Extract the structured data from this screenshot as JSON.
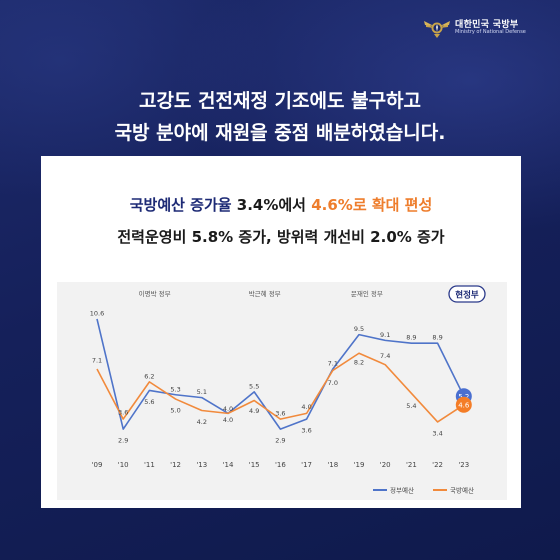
{
  "brand": {
    "name_ko": "대한민국 국방부",
    "name_en": "Ministry of National Defense",
    "logo_icon": "mnd-emblem-icon"
  },
  "headline": {
    "line1": "고강도 건전재정 기조에도 불구하고",
    "line2": "국방 분야에 재원을 중점 배분하였습니다."
  },
  "summary": {
    "line1_a": "국방예산 증가율",
    "line1_b": "3.4%에서",
    "line1_c": "4.6%로 확대 편성",
    "line2": "전력운영비 5.8% 증가, 방위력 개선비 2.0% 증가"
  },
  "colors": {
    "government": "#4f74c9",
    "defense": "#f18a3c",
    "government_marker": "#4a6fd0",
    "defense_marker": "#f47d27",
    "navy": "#1d2a75",
    "badge_border": "#2b3a8a"
  },
  "chart_data": {
    "type": "line",
    "title": "",
    "x": [
      "'09",
      "'10",
      "'11",
      "'12",
      "'13",
      "'14",
      "'15",
      "'16",
      "'17",
      "'18",
      "'19",
      "'20",
      "'21",
      "'22",
      "'23"
    ],
    "series": [
      {
        "name": "정부예산",
        "values": [
          10.6,
          2.9,
          5.6,
          5.3,
          5.1,
          4.0,
          5.5,
          2.9,
          3.6,
          7.1,
          9.5,
          9.1,
          8.9,
          8.9,
          5.2
        ]
      },
      {
        "name": "국방예산",
        "values": [
          7.1,
          3.6,
          6.2,
          5.0,
          4.2,
          4.0,
          4.9,
          3.6,
          4.0,
          7.0,
          8.2,
          7.4,
          5.4,
          3.4,
          4.6
        ]
      }
    ],
    "eras": [
      {
        "label": "이명박 정부"
      },
      {
        "label": "박근혜 정부"
      },
      {
        "label": "문재인 정부"
      },
      {
        "label": "현정부"
      }
    ],
    "ylim": [
      2,
      11.5
    ],
    "grid": false,
    "legend": "bottom-right"
  }
}
